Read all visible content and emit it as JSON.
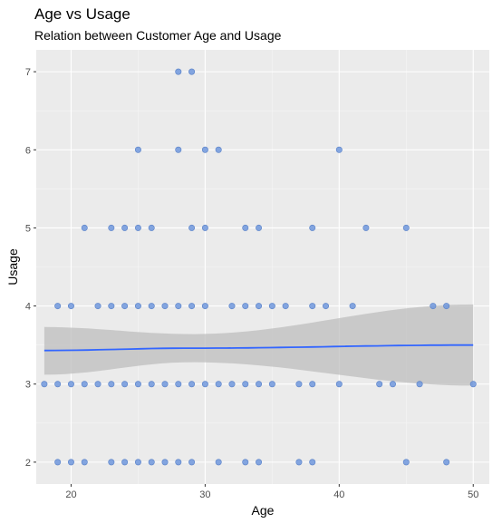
{
  "chart_data": {
    "type": "scatter",
    "title": "Age vs Usage",
    "subtitle": "Relation between Customer Age and Usage",
    "xlabel": "Age",
    "ylabel": "Usage",
    "xlim": [
      17.4,
      51.2
    ],
    "ylim": [
      1.72,
      7.28
    ],
    "x_ticks": [
      20,
      30,
      40,
      50
    ],
    "y_ticks": [
      2,
      3,
      4,
      5,
      6,
      7
    ],
    "grid": true,
    "points": [
      {
        "x": 28,
        "y": 7
      },
      {
        "x": 29,
        "y": 7
      },
      {
        "x": 25,
        "y": 6
      },
      {
        "x": 28,
        "y": 6
      },
      {
        "x": 30,
        "y": 6
      },
      {
        "x": 31,
        "y": 6
      },
      {
        "x": 40,
        "y": 6
      },
      {
        "x": 21,
        "y": 5
      },
      {
        "x": 23,
        "y": 5
      },
      {
        "x": 24,
        "y": 5
      },
      {
        "x": 25,
        "y": 5
      },
      {
        "x": 26,
        "y": 5
      },
      {
        "x": 29,
        "y": 5
      },
      {
        "x": 30,
        "y": 5
      },
      {
        "x": 33,
        "y": 5
      },
      {
        "x": 34,
        "y": 5
      },
      {
        "x": 38,
        "y": 5
      },
      {
        "x": 42,
        "y": 5
      },
      {
        "x": 45,
        "y": 5
      },
      {
        "x": 19,
        "y": 4
      },
      {
        "x": 20,
        "y": 4
      },
      {
        "x": 22,
        "y": 4
      },
      {
        "x": 23,
        "y": 4
      },
      {
        "x": 24,
        "y": 4
      },
      {
        "x": 25,
        "y": 4
      },
      {
        "x": 26,
        "y": 4
      },
      {
        "x": 27,
        "y": 4
      },
      {
        "x": 28,
        "y": 4
      },
      {
        "x": 29,
        "y": 4
      },
      {
        "x": 30,
        "y": 4
      },
      {
        "x": 32,
        "y": 4
      },
      {
        "x": 33,
        "y": 4
      },
      {
        "x": 34,
        "y": 4
      },
      {
        "x": 35,
        "y": 4
      },
      {
        "x": 36,
        "y": 4
      },
      {
        "x": 38,
        "y": 4
      },
      {
        "x": 39,
        "y": 4
      },
      {
        "x": 41,
        "y": 4
      },
      {
        "x": 47,
        "y": 4
      },
      {
        "x": 48,
        "y": 4
      },
      {
        "x": 18,
        "y": 3
      },
      {
        "x": 19,
        "y": 3
      },
      {
        "x": 20,
        "y": 3
      },
      {
        "x": 21,
        "y": 3
      },
      {
        "x": 22,
        "y": 3
      },
      {
        "x": 23,
        "y": 3
      },
      {
        "x": 24,
        "y": 3
      },
      {
        "x": 25,
        "y": 3
      },
      {
        "x": 26,
        "y": 3
      },
      {
        "x": 27,
        "y": 3
      },
      {
        "x": 28,
        "y": 3
      },
      {
        "x": 29,
        "y": 3
      },
      {
        "x": 30,
        "y": 3
      },
      {
        "x": 31,
        "y": 3
      },
      {
        "x": 32,
        "y": 3
      },
      {
        "x": 33,
        "y": 3
      },
      {
        "x": 34,
        "y": 3
      },
      {
        "x": 35,
        "y": 3
      },
      {
        "x": 37,
        "y": 3
      },
      {
        "x": 38,
        "y": 3
      },
      {
        "x": 40,
        "y": 3
      },
      {
        "x": 43,
        "y": 3
      },
      {
        "x": 44,
        "y": 3
      },
      {
        "x": 46,
        "y": 3
      },
      {
        "x": 50,
        "y": 3
      },
      {
        "x": 19,
        "y": 2
      },
      {
        "x": 20,
        "y": 2
      },
      {
        "x": 21,
        "y": 2
      },
      {
        "x": 23,
        "y": 2
      },
      {
        "x": 24,
        "y": 2
      },
      {
        "x": 25,
        "y": 2
      },
      {
        "x": 26,
        "y": 2
      },
      {
        "x": 27,
        "y": 2
      },
      {
        "x": 28,
        "y": 2
      },
      {
        "x": 29,
        "y": 2
      },
      {
        "x": 31,
        "y": 2
      },
      {
        "x": 33,
        "y": 2
      },
      {
        "x": 34,
        "y": 2
      },
      {
        "x": 37,
        "y": 2
      },
      {
        "x": 38,
        "y": 2
      },
      {
        "x": 45,
        "y": 2
      },
      {
        "x": 48,
        "y": 2
      }
    ],
    "smooth": {
      "method": "linear",
      "x": [
        18,
        29,
        50
      ],
      "fit": [
        3.43,
        3.46,
        3.5
      ],
      "lower": [
        3.12,
        3.28,
        2.98
      ],
      "upper": [
        3.73,
        3.64,
        4.02
      ]
    },
    "colors": {
      "panel": "#ebebeb",
      "grid_major": "#ffffff",
      "point": "#6f96dc",
      "point_edge": "#5a82c8",
      "line": "#3366ff",
      "ribbon": "#bdbdbd"
    }
  }
}
